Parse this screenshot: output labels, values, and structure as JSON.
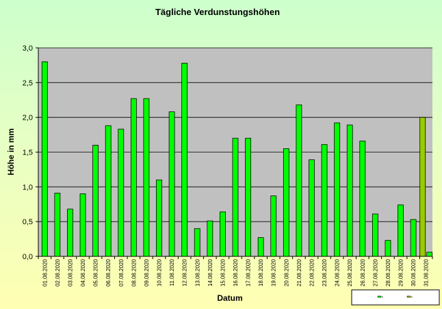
{
  "colors": {
    "plot_background": "#c0c0c0",
    "bar_fill": "#00ff00",
    "bar_highlight_fill": "#99cc00",
    "bar_stroke": "#000000",
    "grid": "#000000"
  },
  "chart_data": {
    "type": "bar",
    "title": "Tägliche Verdunstungshöhen",
    "xlabel": "Datum",
    "ylabel": "Höhe in mm",
    "ylim": [
      0,
      3
    ],
    "yticks": [
      "0,0",
      "0,5",
      "1,0",
      "1,5",
      "2,0",
      "2,5",
      "3,0"
    ],
    "grid": true,
    "legend_position": "bottom-right",
    "categories": [
      "01.08.2020",
      "02.08.2020",
      "03.08.2020",
      "04.08.2020",
      "05.08.2020",
      "06.08.2020",
      "07.08.2020",
      "08.08.2020",
      "09.08.2020",
      "10.08.2020",
      "11.08.2020",
      "12.08.2020",
      "13.08.2020",
      "14.08.2020",
      "15.08.2020",
      "16.08.2020",
      "17.08.2020",
      "18.08.2020",
      "19.08.2020",
      "20.08.2020",
      "21.08.2020",
      "22.08.2020",
      "23.08.2020",
      "24.08.2020",
      "25.08.2020",
      "26.08.2020",
      "27.08.2020",
      "28.08.2020",
      "29.08.2020",
      "30.08.2020",
      "31.08.2020"
    ],
    "series": [
      {
        "values": [
          2.8,
          0.91,
          0.68,
          0.9,
          1.6,
          1.88,
          1.83,
          2.27,
          2.27,
          1.1,
          2.08,
          2.78,
          0.4,
          0.51,
          0.64,
          1.7,
          1.7,
          0.27,
          0.87,
          1.55,
          2.18,
          1.39,
          1.61,
          1.92,
          1.89,
          1.66,
          0.61,
          0.23,
          0.74,
          0.53,
          0.06
        ]
      },
      {
        "values": [
          null,
          null,
          null,
          null,
          null,
          null,
          null,
          null,
          null,
          null,
          null,
          null,
          null,
          null,
          null,
          null,
          null,
          null,
          null,
          null,
          null,
          null,
          null,
          null,
          null,
          null,
          null,
          null,
          null,
          null,
          2.0
        ]
      }
    ],
    "legend": {
      "entries": [
        "▪",
        "▪"
      ]
    }
  }
}
